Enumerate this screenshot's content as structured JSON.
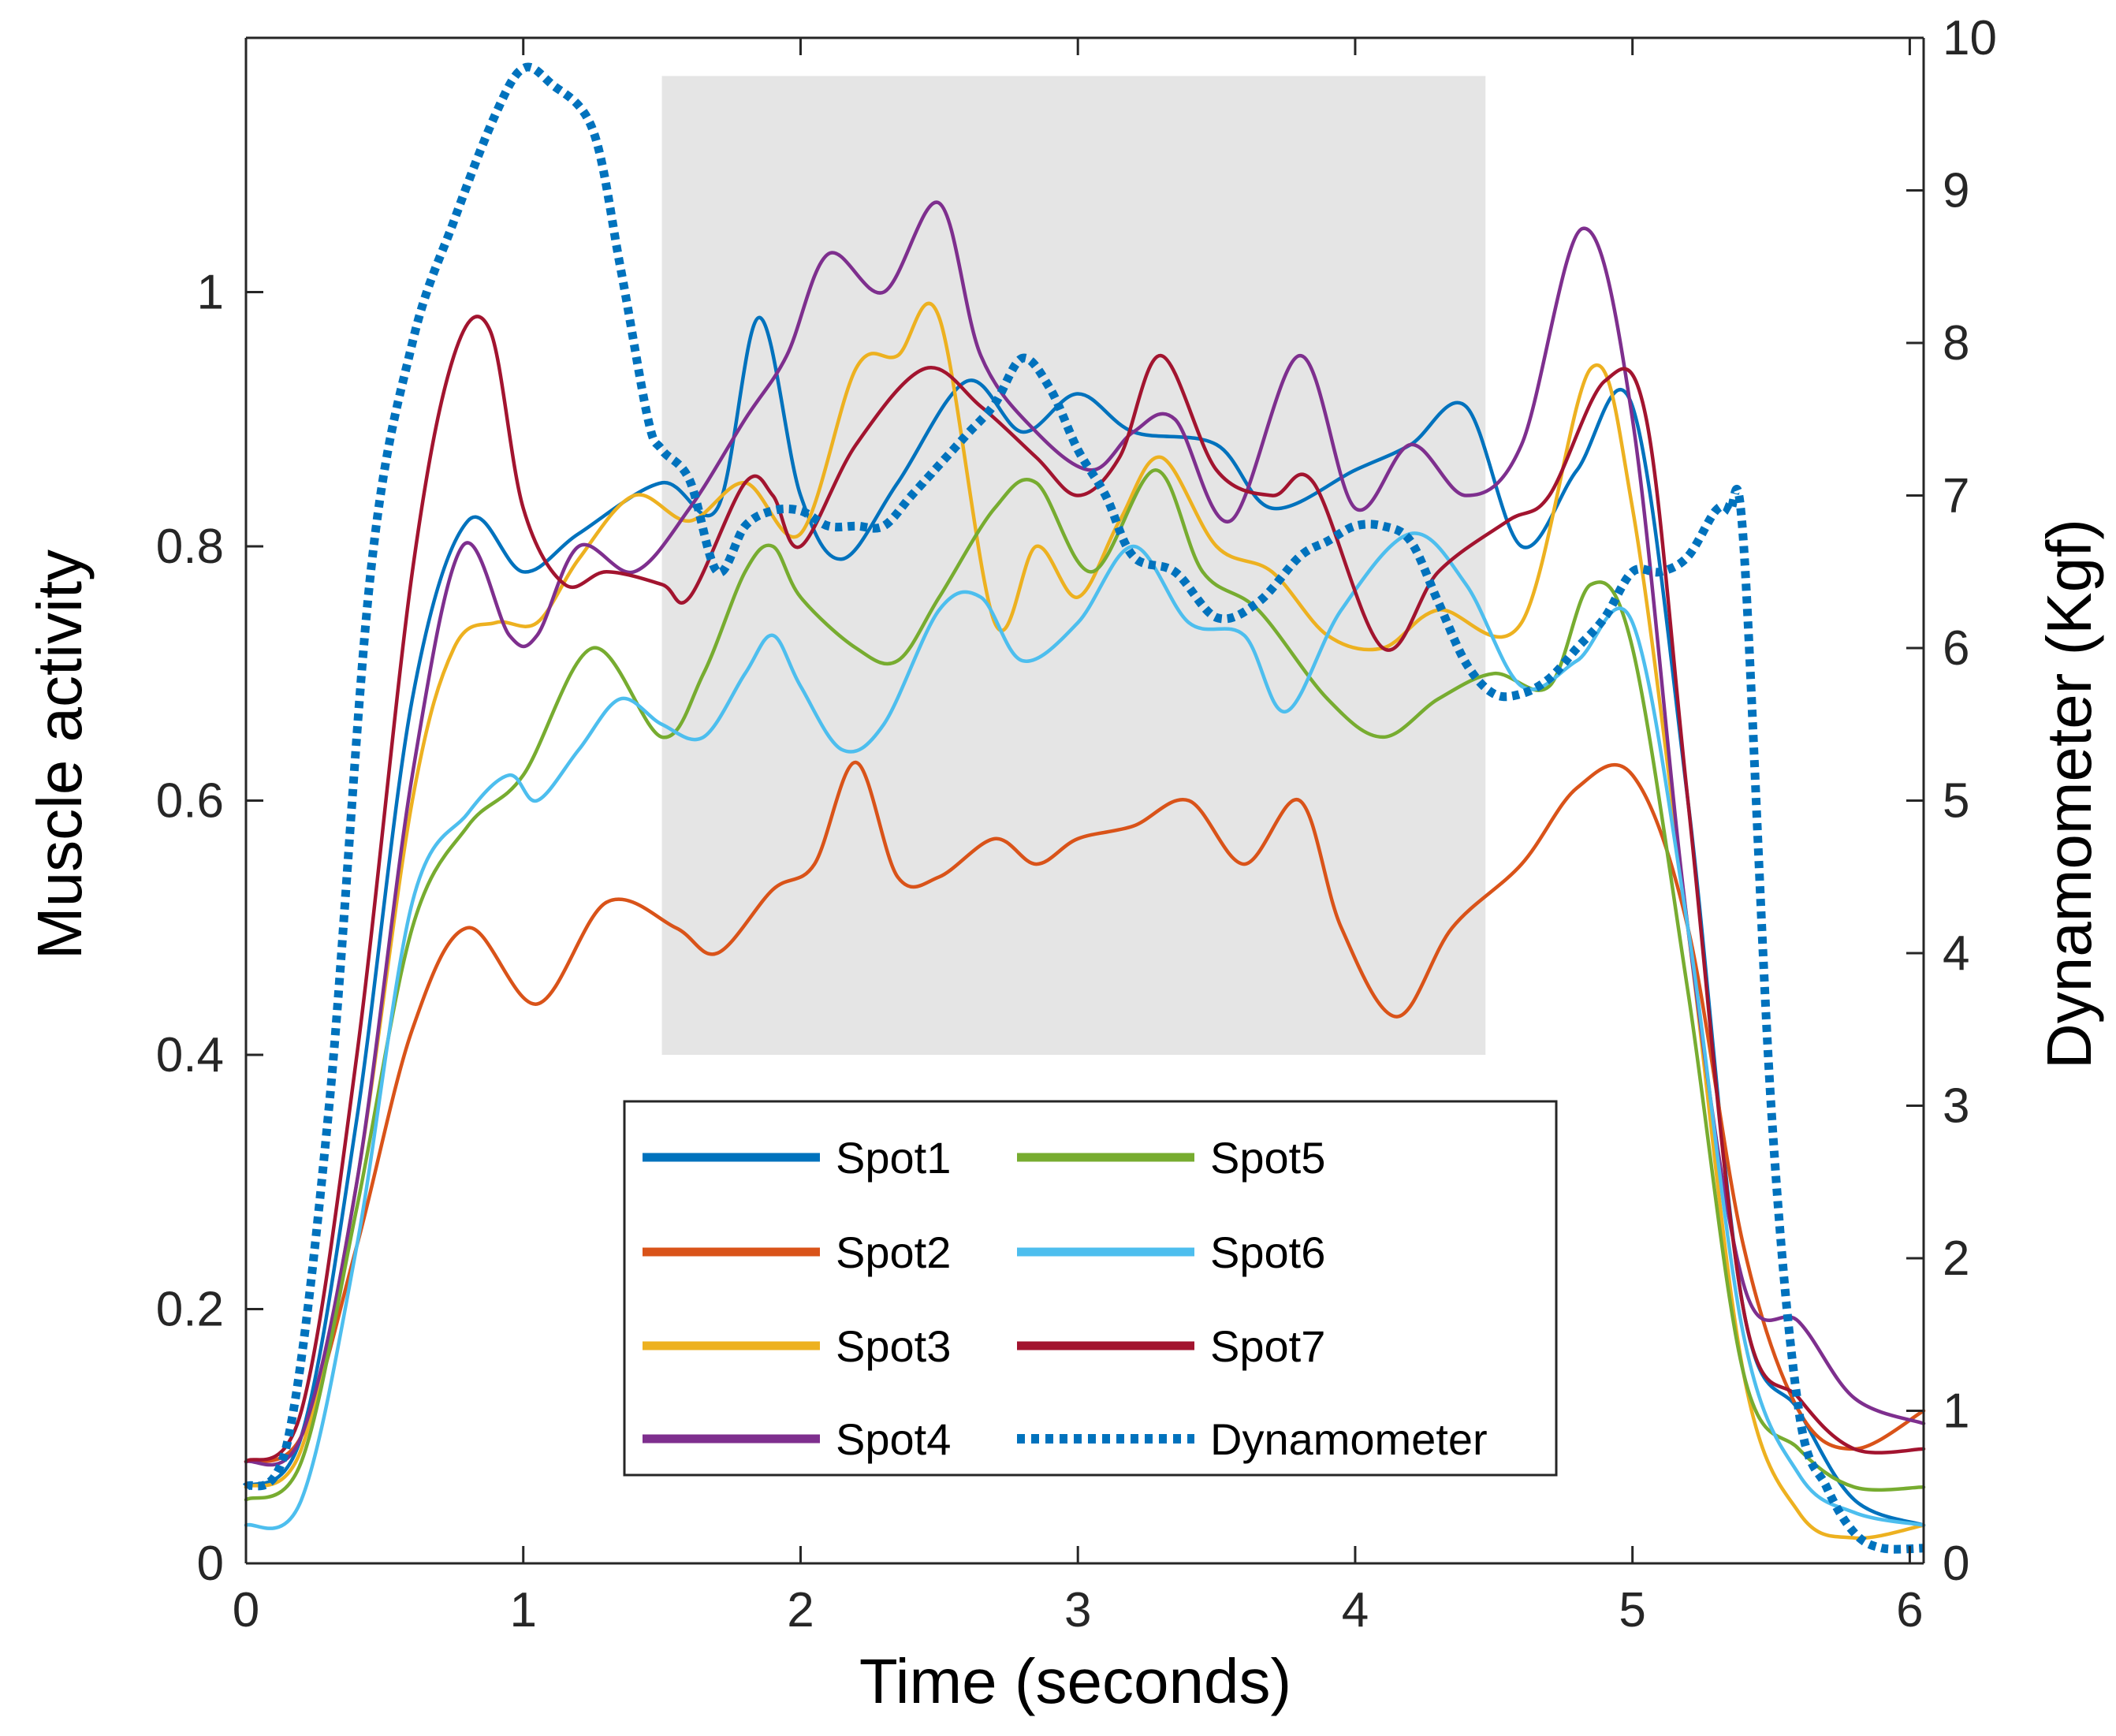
{
  "chart_data": {
    "type": "line",
    "title": "",
    "xlabel": "Time (seconds)",
    "ylabel": "Muscle activity",
    "y2label": "Dynamometer (Kgf)",
    "xlim": [
      0,
      6.05
    ],
    "ylim": [
      0,
      1.2
    ],
    "y2lim": [
      0,
      10
    ],
    "xticks": [
      "0",
      "1",
      "2",
      "3",
      "4",
      "5",
      "6"
    ],
    "yticks": [
      "0",
      "0.2",
      "0.4",
      "0.6",
      "0.8",
      "1"
    ],
    "y2ticks": [
      "0",
      "1",
      "2",
      "3",
      "4",
      "5",
      "6",
      "7",
      "8",
      "9",
      "10"
    ],
    "highlight_region": {
      "x": [
        1.5,
        4.47
      ],
      "y": [
        0.4,
        1.17
      ],
      "color": "#e5e5e5"
    },
    "legend_position": "lower-center",
    "series": [
      {
        "name": "Spot1",
        "color": "#0072BD",
        "style": "solid",
        "axis": "left",
        "x": [
          0,
          0.2,
          0.4,
          0.6,
          0.8,
          1.0,
          1.2,
          1.5,
          1.7,
          1.85,
          2.0,
          2.15,
          2.35,
          2.6,
          2.8,
          3.0,
          3.2,
          3.5,
          3.7,
          4.0,
          4.2,
          4.4,
          4.6,
          4.8,
          5.0,
          5.2,
          5.4,
          5.6,
          5.8,
          6.05
        ],
        "values": [
          0.06,
          0.1,
          0.35,
          0.68,
          0.82,
          0.78,
          0.81,
          0.85,
          0.83,
          0.98,
          0.84,
          0.79,
          0.85,
          0.93,
          0.89,
          0.92,
          0.89,
          0.88,
          0.83,
          0.86,
          0.88,
          0.91,
          0.8,
          0.86,
          0.91,
          0.6,
          0.2,
          0.12,
          0.05,
          0.03
        ]
      },
      {
        "name": "Spot2",
        "color": "#D95319",
        "style": "solid",
        "axis": "left",
        "x": [
          0,
          0.2,
          0.4,
          0.6,
          0.8,
          1.05,
          1.3,
          1.55,
          1.7,
          1.9,
          2.05,
          2.2,
          2.35,
          2.5,
          2.7,
          2.85,
          3.0,
          3.2,
          3.4,
          3.6,
          3.8,
          3.95,
          4.15,
          4.35,
          4.6,
          4.8,
          5.0,
          5.2,
          5.4,
          5.6,
          5.8,
          6.05
        ],
        "values": [
          0.08,
          0.1,
          0.25,
          0.42,
          0.5,
          0.44,
          0.52,
          0.5,
          0.48,
          0.53,
          0.55,
          0.63,
          0.54,
          0.54,
          0.57,
          0.55,
          0.57,
          0.58,
          0.6,
          0.55,
          0.6,
          0.5,
          0.43,
          0.5,
          0.55,
          0.61,
          0.62,
          0.5,
          0.25,
          0.12,
          0.09,
          0.12
        ]
      },
      {
        "name": "Spot3",
        "color": "#EDB120",
        "style": "solid",
        "axis": "left",
        "x": [
          0,
          0.2,
          0.4,
          0.6,
          0.75,
          0.9,
          1.05,
          1.2,
          1.4,
          1.6,
          1.8,
          2.0,
          2.2,
          2.35,
          2.5,
          2.7,
          2.85,
          3.0,
          3.15,
          3.3,
          3.5,
          3.7,
          3.9,
          4.1,
          4.3,
          4.6,
          4.85,
          5.0,
          5.2,
          5.4,
          5.6,
          5.8,
          6.05
        ],
        "values": [
          0.06,
          0.09,
          0.3,
          0.6,
          0.72,
          0.74,
          0.74,
          0.79,
          0.84,
          0.82,
          0.85,
          0.81,
          0.94,
          0.95,
          0.98,
          0.74,
          0.8,
          0.76,
          0.82,
          0.87,
          0.8,
          0.78,
          0.73,
          0.72,
          0.75,
          0.74,
          0.94,
          0.83,
          0.5,
          0.15,
          0.04,
          0.02,
          0.03
        ]
      },
      {
        "name": "Spot4",
        "color": "#7E2F8E",
        "style": "solid",
        "axis": "left",
        "x": [
          0,
          0.2,
          0.4,
          0.6,
          0.78,
          0.95,
          1.05,
          1.2,
          1.4,
          1.6,
          1.8,
          1.95,
          2.1,
          2.3,
          2.5,
          2.65,
          2.85,
          3.05,
          3.2,
          3.35,
          3.55,
          3.8,
          4.0,
          4.2,
          4.4,
          4.6,
          4.82,
          5.0,
          5.2,
          5.4,
          5.6,
          5.8,
          6.05
        ],
        "values": [
          0.08,
          0.1,
          0.3,
          0.62,
          0.8,
          0.73,
          0.73,
          0.8,
          0.78,
          0.83,
          0.9,
          0.95,
          1.03,
          1.0,
          1.07,
          0.95,
          0.89,
          0.86,
          0.89,
          0.9,
          0.82,
          0.95,
          0.83,
          0.88,
          0.84,
          0.88,
          1.05,
          0.9,
          0.5,
          0.22,
          0.19,
          0.13,
          0.11
        ]
      },
      {
        "name": "Spot5",
        "color": "#77AC30",
        "style": "solid",
        "axis": "left",
        "x": [
          0,
          0.2,
          0.4,
          0.6,
          0.8,
          1.0,
          1.25,
          1.5,
          1.65,
          1.8,
          1.9,
          2.0,
          2.2,
          2.35,
          2.5,
          2.7,
          2.85,
          3.05,
          3.28,
          3.45,
          3.65,
          3.9,
          4.1,
          4.3,
          4.5,
          4.7,
          4.85,
          5.0,
          5.2,
          5.4,
          5.6,
          5.8,
          6.05
        ],
        "values": [
          0.05,
          0.08,
          0.28,
          0.5,
          0.58,
          0.62,
          0.72,
          0.65,
          0.7,
          0.78,
          0.8,
          0.76,
          0.72,
          0.71,
          0.76,
          0.83,
          0.85,
          0.78,
          0.86,
          0.78,
          0.75,
          0.68,
          0.65,
          0.68,
          0.7,
          0.69,
          0.77,
          0.72,
          0.45,
          0.15,
          0.09,
          0.06,
          0.06
        ]
      },
      {
        "name": "Spot6",
        "color": "#4DBEEE",
        "style": "solid",
        "axis": "left",
        "x": [
          0,
          0.2,
          0.4,
          0.6,
          0.8,
          0.95,
          1.05,
          1.2,
          1.35,
          1.5,
          1.65,
          1.8,
          1.9,
          2.0,
          2.15,
          2.3,
          2.5,
          2.65,
          2.8,
          3.0,
          3.2,
          3.4,
          3.6,
          3.75,
          3.95,
          4.2,
          4.4,
          4.6,
          4.8,
          5.0,
          5.2,
          5.4,
          5.6,
          5.8,
          6.05
        ],
        "values": [
          0.03,
          0.05,
          0.25,
          0.52,
          0.59,
          0.62,
          0.6,
          0.64,
          0.68,
          0.66,
          0.65,
          0.7,
          0.73,
          0.69,
          0.64,
          0.66,
          0.75,
          0.76,
          0.71,
          0.74,
          0.8,
          0.74,
          0.73,
          0.67,
          0.75,
          0.81,
          0.77,
          0.69,
          0.71,
          0.74,
          0.5,
          0.18,
          0.07,
          0.04,
          0.03
        ]
      },
      {
        "name": "Spot7",
        "color": "#A2142F",
        "style": "solid",
        "axis": "left",
        "x": [
          0,
          0.2,
          0.4,
          0.6,
          0.75,
          0.88,
          1.0,
          1.15,
          1.3,
          1.5,
          1.6,
          1.8,
          1.9,
          2.0,
          2.2,
          2.45,
          2.65,
          2.85,
          3.0,
          3.15,
          3.3,
          3.5,
          3.7,
          3.85,
          4.1,
          4.3,
          4.55,
          4.7,
          4.9,
          5.05,
          5.2,
          5.4,
          5.6,
          5.8,
          6.05
        ],
        "values": [
          0.08,
          0.12,
          0.4,
          0.78,
          0.95,
          0.97,
          0.83,
          0.77,
          0.78,
          0.77,
          0.76,
          0.85,
          0.84,
          0.8,
          0.88,
          0.94,
          0.91,
          0.87,
          0.84,
          0.87,
          0.95,
          0.86,
          0.84,
          0.85,
          0.72,
          0.78,
          0.82,
          0.84,
          0.93,
          0.9,
          0.6,
          0.2,
          0.13,
          0.09,
          0.09
        ]
      },
      {
        "name": "Dynamometer",
        "color": "#0072BD",
        "style": "dotted",
        "axis": "right",
        "x": [
          0,
          0.15,
          0.3,
          0.45,
          0.6,
          0.75,
          0.9,
          1.0,
          1.1,
          1.25,
          1.35,
          1.45,
          1.5,
          1.6,
          1.7,
          1.8,
          1.9,
          2.0,
          2.1,
          2.2,
          2.3,
          2.4,
          2.5,
          2.6,
          2.7,
          2.8,
          2.9,
          3.0,
          3.1,
          3.2,
          3.35,
          3.5,
          3.65,
          3.8,
          3.9,
          4.0,
          4.1,
          4.2,
          4.3,
          4.4,
          4.5,
          4.6,
          4.7,
          4.8,
          4.9,
          5.0,
          5.1,
          5.2,
          5.3,
          5.35,
          5.4,
          5.5,
          5.6,
          5.7,
          5.8,
          5.9,
          6.05
        ],
        "values": [
          0.5,
          0.8,
          3.0,
          6.5,
          8.0,
          8.8,
          9.5,
          9.8,
          9.7,
          9.4,
          8.5,
          7.5,
          7.3,
          7.1,
          6.5,
          6.8,
          6.9,
          6.9,
          6.8,
          6.8,
          6.8,
          7.0,
          7.2,
          7.4,
          7.6,
          7.9,
          7.7,
          7.3,
          7.0,
          6.6,
          6.5,
          6.2,
          6.3,
          6.6,
          6.7,
          6.8,
          6.8,
          6.7,
          6.3,
          5.9,
          5.7,
          5.7,
          5.8,
          6.0,
          6.2,
          6.5,
          6.5,
          6.6,
          6.9,
          6.9,
          6.7,
          3.0,
          1.0,
          0.5,
          0.2,
          0.1,
          0.1
        ]
      }
    ]
  }
}
